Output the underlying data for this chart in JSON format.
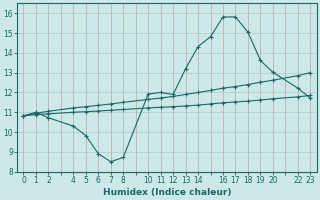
{
  "xlabel": "Humidex (Indice chaleur)",
  "bg_color": "#cce8e8",
  "grid_color": "#b0c8c8",
  "line_color": "#1a6868",
  "xlim": [
    -0.5,
    23.5
  ],
  "ylim": [
    8,
    16.5
  ],
  "xtick_positions": [
    0,
    1,
    2,
    3,
    4,
    5,
    6,
    7,
    8,
    9,
    10,
    11,
    12,
    13,
    14,
    15,
    16,
    17,
    18,
    19,
    20,
    21,
    22,
    23
  ],
  "xtick_labels": [
    "0",
    "1",
    "2",
    "",
    "4",
    "5",
    "6",
    "7",
    "8",
    "",
    "10",
    "11",
    "12",
    "13",
    "14",
    "",
    "16",
    "17",
    "18",
    "19",
    "20",
    "",
    "22",
    "23"
  ],
  "yticks": [
    8,
    9,
    10,
    11,
    12,
    13,
    14,
    15,
    16
  ],
  "line1_x": [
    0,
    1,
    2,
    4,
    5,
    6,
    7,
    8,
    10,
    11,
    12,
    13,
    14,
    15,
    16,
    17,
    18,
    19,
    20,
    22,
    23
  ],
  "line1_y": [
    10.82,
    11.0,
    10.72,
    10.3,
    9.82,
    8.9,
    8.5,
    8.72,
    11.92,
    12.0,
    11.9,
    13.2,
    14.32,
    14.82,
    15.82,
    15.82,
    15.05,
    13.62,
    13.02,
    12.22,
    11.72
  ],
  "line2_x": [
    0,
    1,
    2,
    4,
    5,
    6,
    7,
    8,
    10,
    11,
    12,
    13,
    14,
    15,
    16,
    17,
    18,
    19,
    20,
    22,
    23
  ],
  "line2_y": [
    10.82,
    10.95,
    11.05,
    11.22,
    11.28,
    11.35,
    11.42,
    11.5,
    11.65,
    11.72,
    11.8,
    11.9,
    12.0,
    12.1,
    12.22,
    12.3,
    12.4,
    12.52,
    12.62,
    12.85,
    13.0
  ],
  "line3_x": [
    0,
    1,
    2,
    4,
    5,
    6,
    7,
    8,
    10,
    11,
    12,
    13,
    14,
    15,
    16,
    17,
    18,
    19,
    20,
    22,
    23
  ],
  "line3_y": [
    10.82,
    10.88,
    10.92,
    11.0,
    11.03,
    11.06,
    11.1,
    11.14,
    11.22,
    11.25,
    11.28,
    11.32,
    11.36,
    11.42,
    11.48,
    11.52,
    11.56,
    11.62,
    11.68,
    11.78,
    11.85
  ]
}
